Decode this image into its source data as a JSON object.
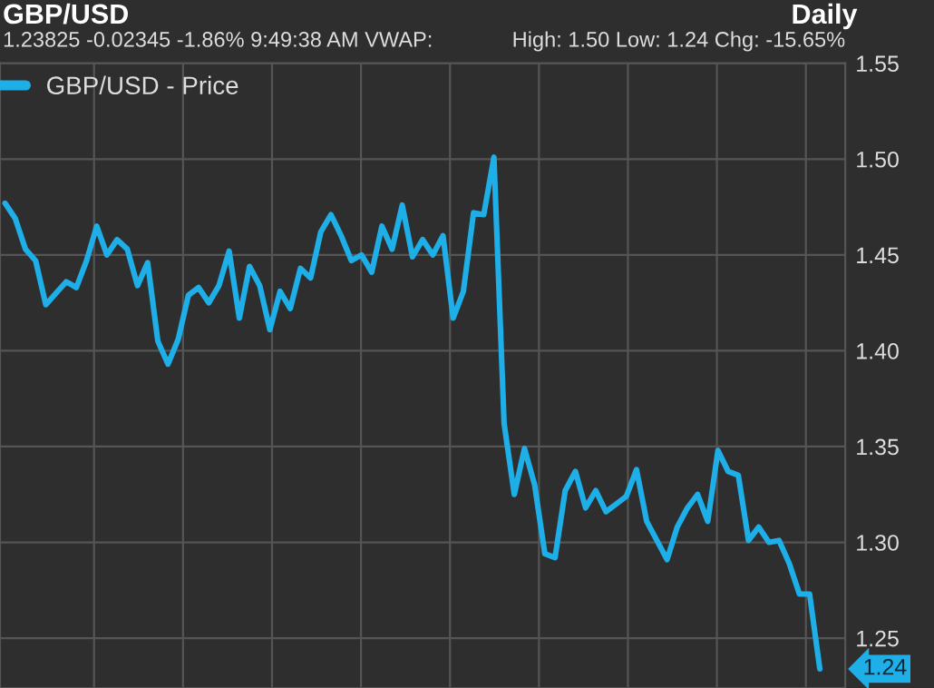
{
  "chart_data": {
    "type": "line",
    "title": "GBP/USD",
    "subtitle": "1.23825 -0.02345 -1.86% 9:49:38 AM VWAP:",
    "annotations": [
      "Daily",
      "High: 1.50 Low: 1.24 Chg: -15.65%",
      "1.24"
    ],
    "categories": [
      null,
      null,
      null,
      null,
      null,
      null,
      null,
      null,
      null,
      null,
      null,
      null,
      null,
      null,
      null,
      null,
      null,
      null,
      null,
      null,
      null,
      null,
      null,
      null,
      null,
      null,
      null,
      null,
      null,
      null,
      null,
      null,
      null,
      null,
      null,
      null,
      null,
      null,
      null,
      null,
      null,
      null,
      null,
      null,
      null,
      null,
      null,
      null,
      null,
      null,
      null,
      null,
      null,
      null,
      null,
      null,
      null,
      null,
      null,
      null,
      null,
      null,
      null,
      null,
      null,
      null,
      null,
      null,
      null,
      null,
      null,
      null,
      null,
      null,
      null,
      null,
      null,
      null,
      null,
      null,
      null
    ],
    "series": [
      {
        "name": "GBP/USD - Price",
        "color": "#1eaee8",
        "values": [
          1.477,
          1.469,
          1.453,
          1.447,
          1.424,
          1.43,
          1.436,
          1.433,
          1.447,
          1.465,
          1.45,
          1.458,
          1.453,
          1.434,
          1.446,
          1.405,
          1.393,
          1.406,
          1.429,
          1.433,
          1.425,
          1.434,
          1.452,
          1.417,
          1.444,
          1.434,
          1.411,
          1.431,
          1.422,
          1.443,
          1.438,
          1.462,
          1.471,
          1.46,
          1.447,
          1.45,
          1.441,
          1.465,
          1.453,
          1.476,
          1.449,
          1.458,
          1.45,
          1.46,
          1.417,
          1.431,
          1.472,
          1.471,
          1.501,
          1.362,
          1.325,
          1.349,
          1.33,
          1.294,
          1.292,
          1.327,
          1.337,
          1.318,
          1.327,
          1.316,
          1.32,
          1.324,
          1.338,
          1.311,
          1.301,
          1.291,
          1.308,
          1.318,
          1.325,
          1.311,
          1.348,
          1.337,
          1.335,
          1.301,
          1.308,
          1.3,
          1.301,
          1.289,
          1.273,
          1.273,
          1.234
        ]
      }
    ],
    "ylim": [
      1.224,
      1.55
    ],
    "yticks": [
      {
        "value": 1.25,
        "label": "1.25"
      },
      {
        "value": 1.3,
        "label": "1.30"
      },
      {
        "value": 1.35,
        "label": "1.35"
      },
      {
        "value": 1.4,
        "label": "1.40"
      },
      {
        "value": 1.45,
        "label": "1.45"
      },
      {
        "value": 1.5,
        "label": "1.50"
      },
      {
        "value": 1.55,
        "label": "1.55"
      }
    ],
    "grid": true,
    "legend": "top left",
    "tick_labels": "y",
    "marker": "none",
    "line_style": "solid"
  }
}
